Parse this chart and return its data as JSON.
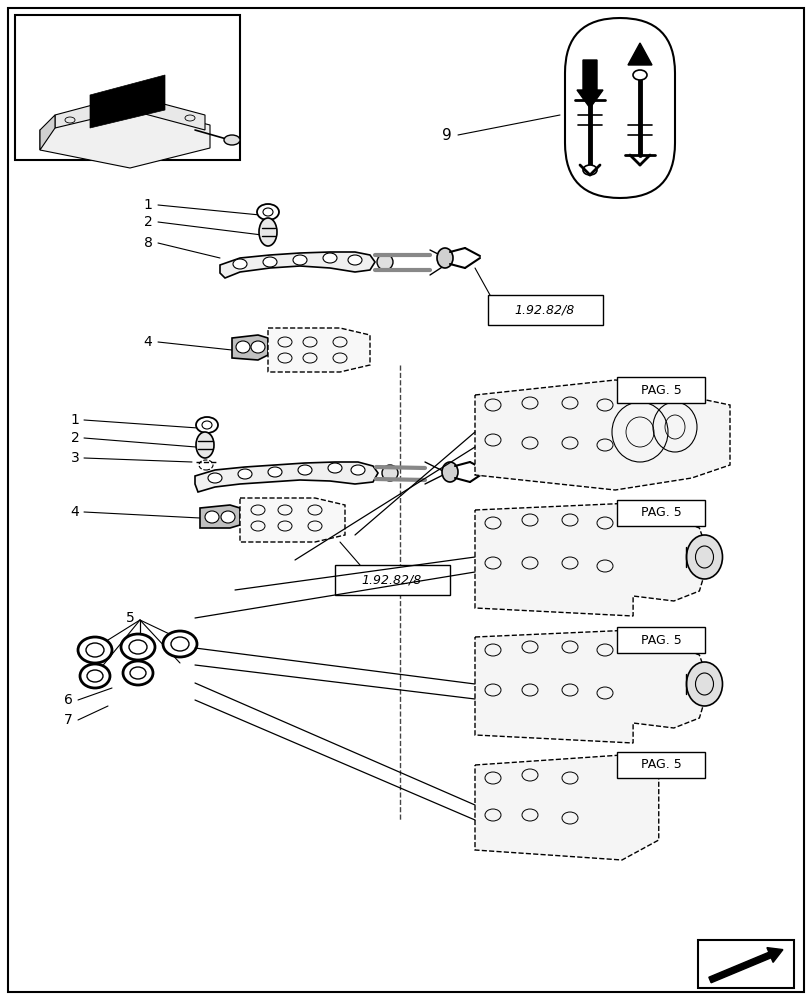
{
  "bg_color": "#ffffff",
  "border_color": "#000000",
  "line_color": "#000000",
  "fig_width": 8.12,
  "fig_height": 10.0,
  "dpi": 100,
  "ref_box1_label": "1.92.82/8",
  "ref_box2_label": "1.92.82/8",
  "pag5_label": "PAG. 5",
  "part_number_9": "9"
}
